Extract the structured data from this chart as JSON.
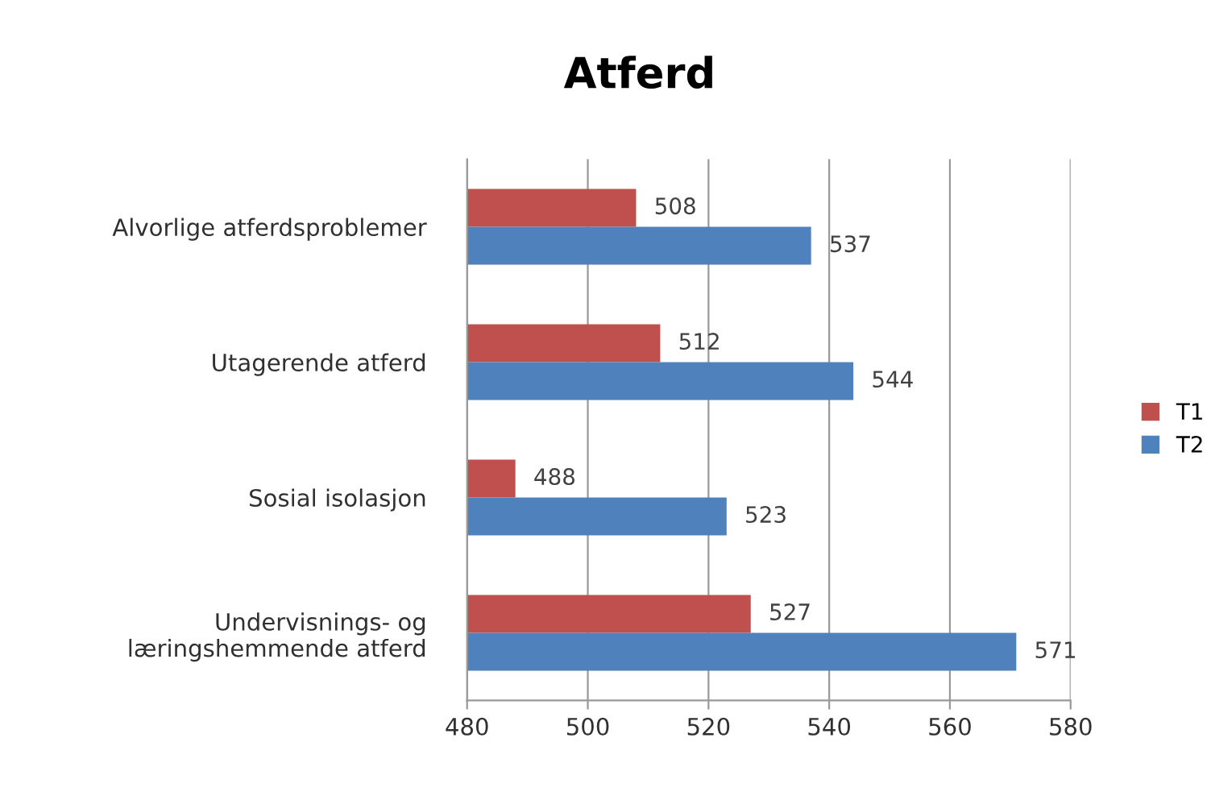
{
  "chart_data": {
    "type": "bar",
    "orientation": "horizontal",
    "title": "Atferd",
    "categories": [
      "Alvorlige atferdsproblemer",
      "Utagerende atferd",
      "Sosial isolasjon",
      "Undervisnings- og\nlæringshemmende atferd"
    ],
    "series": [
      {
        "name": "T1",
        "color": "#c0504d",
        "values": [
          508,
          512,
          488,
          527
        ]
      },
      {
        "name": "T2",
        "color": "#4f81bd",
        "values": [
          537,
          544,
          523,
          571
        ]
      }
    ],
    "xlim": [
      480,
      580
    ],
    "xticks": [
      480,
      500,
      520,
      540,
      560,
      580
    ],
    "grid": "x",
    "legend": "right",
    "data_labels": true
  }
}
